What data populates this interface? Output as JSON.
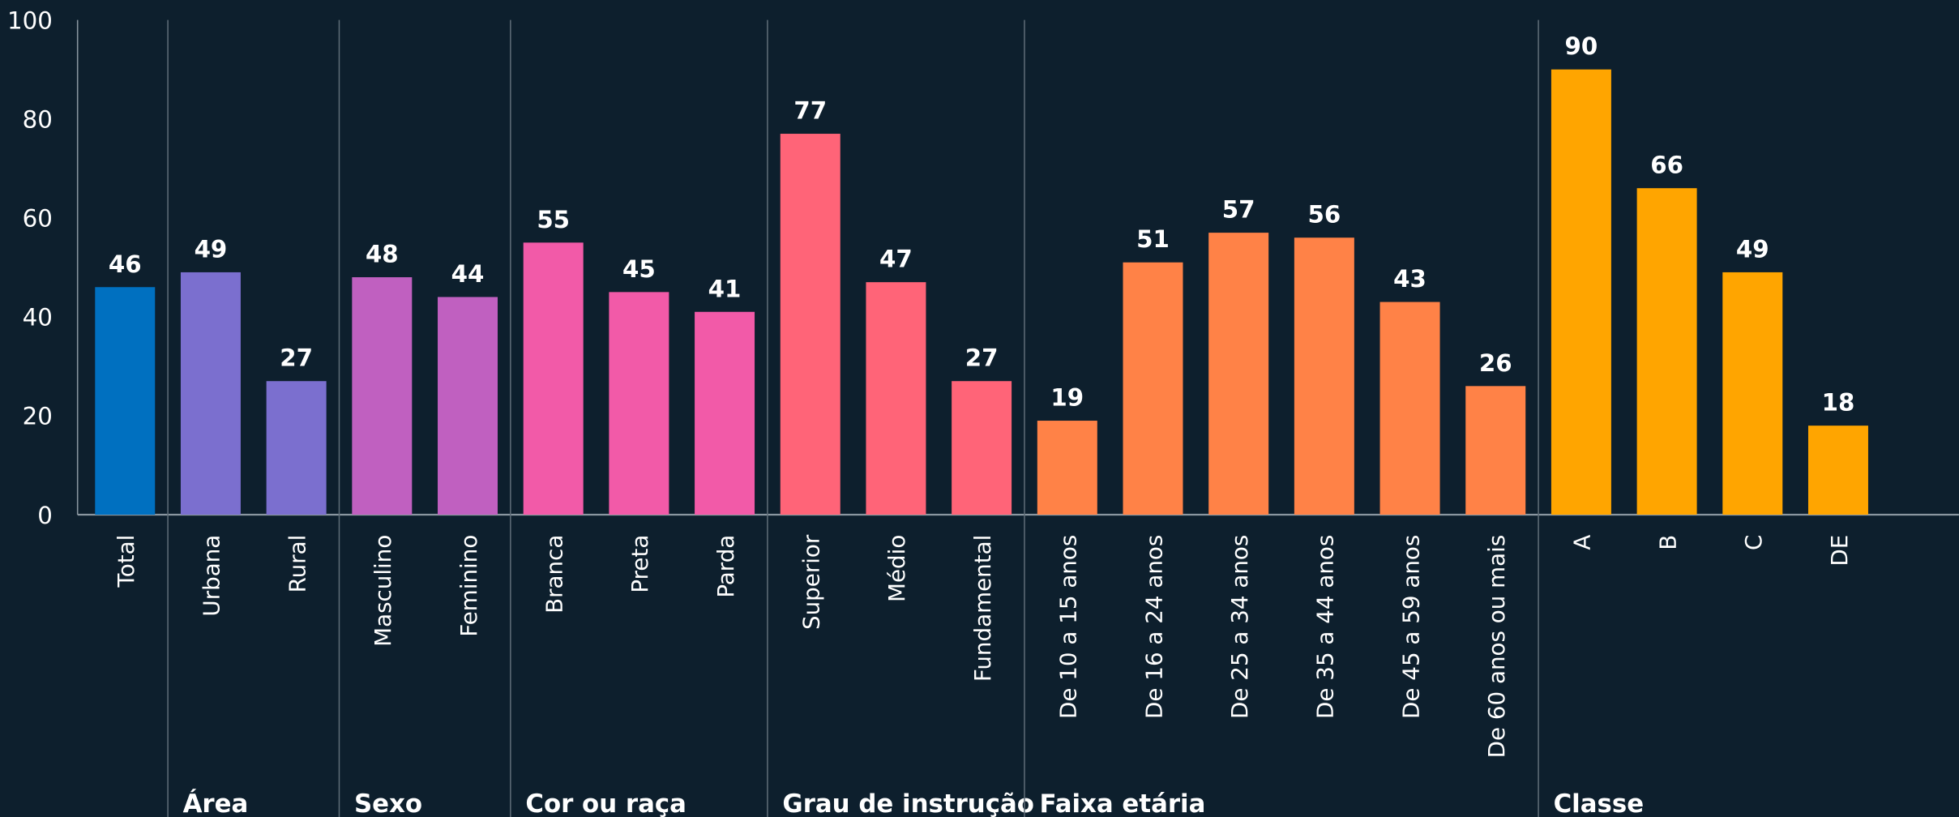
{
  "chart_data": {
    "type": "bar",
    "ylim": [
      0,
      100
    ],
    "yticks": [
      0,
      20,
      40,
      60,
      80,
      100
    ],
    "groups": [
      {
        "name": null,
        "color": "#0070c0",
        "categories": [
          "Total"
        ],
        "values": [
          46
        ]
      },
      {
        "name": "Área",
        "color": "#7b6fcf",
        "categories": [
          "Urbana",
          "Rural"
        ],
        "values": [
          49,
          27
        ]
      },
      {
        "name": "Sexo",
        "color": "#c060c0",
        "categories": [
          "Masculino",
          "Feminino"
        ],
        "values": [
          48,
          44
        ]
      },
      {
        "name": "Cor ou raça",
        "color": "#f25aa8",
        "categories": [
          "Branca",
          "Preta",
          "Parda"
        ],
        "values": [
          55,
          45,
          41
        ]
      },
      {
        "name": "Grau de instrução",
        "color": "#ff6478",
        "categories": [
          "Superior",
          "Médio",
          "Fundamental"
        ],
        "values": [
          77,
          47,
          27
        ]
      },
      {
        "name": "Faixa etária",
        "color": "#ff8247",
        "categories": [
          "De 10 a 15 anos",
          "De 16 a 24 anos",
          "De 25 a 34 anos",
          "De 35 a 44 anos",
          "De 45 a 59 anos",
          "De 60 anos ou mais"
        ],
        "values": [
          19,
          51,
          57,
          56,
          43,
          26
        ]
      },
      {
        "name": "Classe",
        "color": "#ffa500",
        "categories": [
          "A",
          "B",
          "C",
          "DE"
        ],
        "values": [
          90,
          66,
          49,
          18
        ]
      }
    ]
  }
}
